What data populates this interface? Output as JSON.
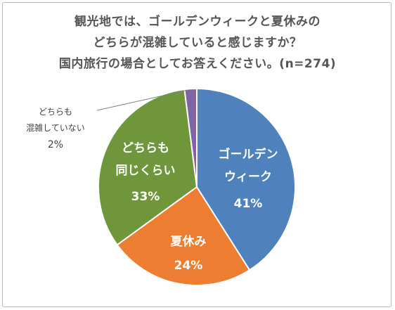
{
  "chart_data": {
    "type": "pie",
    "title_lines": [
      "観光地では、ゴールデンウィークと夏休みの",
      "どちらが混雑していると感じますか？",
      "国内旅行の場合としてお答えください。(n=274)"
    ],
    "slices": [
      {
        "label_lines": [
          "ゴールデン",
          "ウィーク"
        ],
        "value_label": "41%",
        "value": 41,
        "color": "#4f81bd"
      },
      {
        "label_lines": [
          "夏休み"
        ],
        "value_label": "24%",
        "value": 24,
        "color": "#ed7d31"
      },
      {
        "label_lines": [
          "どちらも",
          "同じくらい"
        ],
        "value_label": "33%",
        "value": 33,
        "color": "#70963c"
      },
      {
        "label_lines": [
          "どちらも",
          "混雑していない"
        ],
        "value_label": "2%",
        "value": 2,
        "color": "#8064a2"
      }
    ]
  }
}
